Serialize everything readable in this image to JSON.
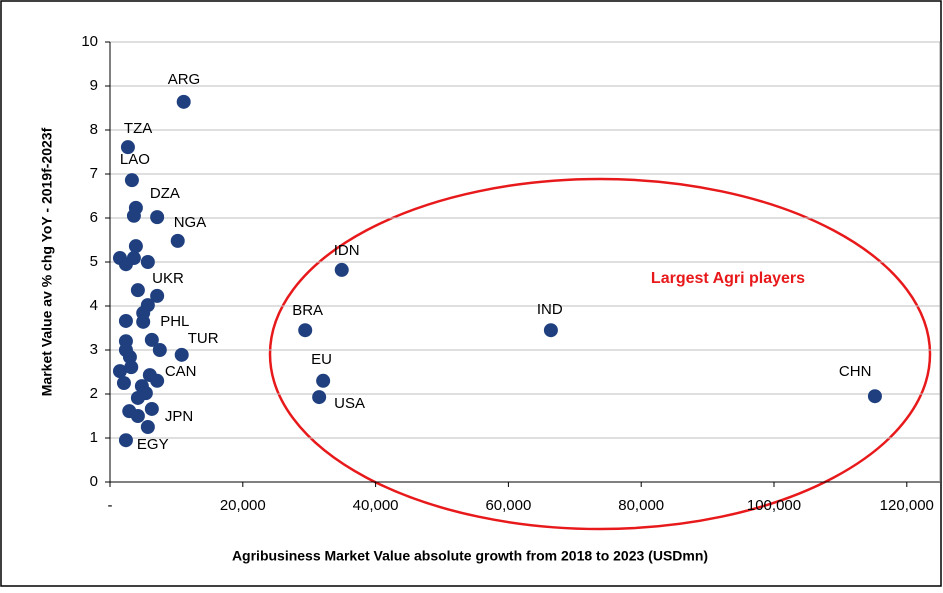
{
  "chart_data": {
    "type": "scatter",
    "annotation": "Largest Agri players",
    "xlabel": "Agribusiness Market Value absolute growth from 2018 to 2023 (USDmn)",
    "ylabel": "Market Value av % chg YoY - 2019f-2023f",
    "xlim": [
      0,
      125000
    ],
    "ylim": [
      0,
      10
    ],
    "xticks": [
      {
        "value": 0,
        "label": "-"
      },
      {
        "value": 20000,
        "label": "20,000"
      },
      {
        "value": 40000,
        "label": "40,000"
      },
      {
        "value": 60000,
        "label": "60,000"
      },
      {
        "value": 80000,
        "label": "80,000"
      },
      {
        "value": 100000,
        "label": "100,000"
      },
      {
        "value": 120000,
        "label": "120,000"
      }
    ],
    "yticks": [
      0,
      1,
      2,
      3,
      4,
      5,
      6,
      7,
      8,
      9,
      10
    ],
    "grid": true,
    "color": "#1f3f7f",
    "x": [
      11100,
      2700,
      3300,
      3900,
      3600,
      7100,
      10200,
      3900,
      1500,
      2400,
      3600,
      5700,
      4200,
      7100,
      5700,
      5000,
      5000,
      2400,
      2400,
      2400,
      3000,
      6300,
      7500,
      10800,
      1500,
      3200,
      2100,
      4800,
      6000,
      7100,
      4200,
      5400,
      2900,
      4200,
      6300,
      5700,
      2400,
      34900,
      29400,
      66400,
      32100,
      31500,
      115200
    ],
    "values": [
      8.64,
      7.61,
      6.86,
      6.23,
      6.05,
      6.02,
      5.48,
      5.36,
      5.09,
      4.95,
      5.09,
      5.0,
      4.36,
      4.23,
      4.02,
      3.84,
      3.64,
      3.66,
      3.2,
      3.0,
      2.84,
      3.23,
      3.0,
      2.89,
      2.52,
      2.61,
      2.25,
      2.18,
      2.43,
      2.3,
      1.91,
      2.02,
      1.61,
      1.5,
      1.66,
      1.25,
      0.95,
      4.82,
      3.45,
      3.45,
      2.3,
      1.93,
      1.95
    ],
    "labels": [
      "ARG",
      "TZA",
      "LAO",
      "DZA",
      null,
      null,
      "NGA",
      null,
      null,
      null,
      null,
      null,
      null,
      "UKR",
      null,
      null,
      "PHL",
      null,
      null,
      null,
      null,
      null,
      null,
      "TUR",
      null,
      null,
      null,
      null,
      "CAN",
      null,
      null,
      null,
      null,
      null,
      "JPN",
      null,
      "EGY",
      "IDN",
      "BRA",
      "IND",
      "EU",
      "USA",
      "CHN"
    ]
  }
}
